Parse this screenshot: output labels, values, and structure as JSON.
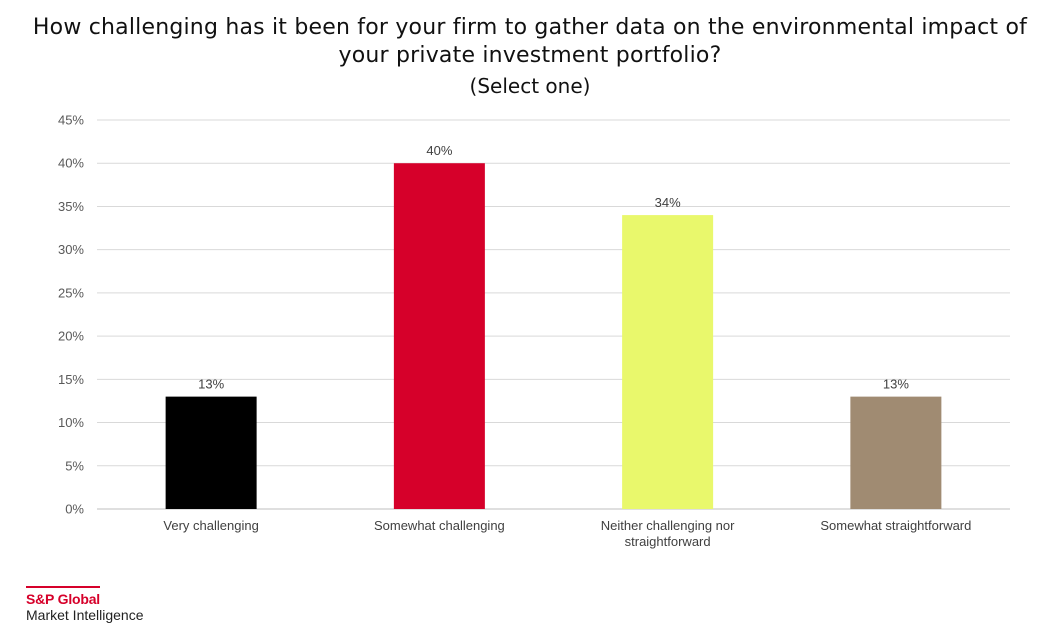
{
  "title_lines": [
    "How challenging has it been for your firm to gather data on the environmental impact of",
    "your private investment portfolio?"
  ],
  "subtitle": "(Select one)",
  "logo": {
    "brand": "S&P Global",
    "subtitle": "Market Intelligence",
    "color": "#d6002a"
  },
  "chart_data": {
    "type": "bar",
    "title": "How challenging has it been for your firm to gather data on the environmental impact of your private investment portfolio?",
    "subtitle": "(Select one)",
    "categories": [
      [
        "Very challenging"
      ],
      [
        "Somewhat challenging"
      ],
      [
        "Neither challenging nor",
        "straightforward"
      ],
      [
        "Somewhat straightforward"
      ]
    ],
    "values": [
      13,
      40,
      34,
      13
    ],
    "data_labels": [
      "13%",
      "40%",
      "34%",
      "13%"
    ],
    "colors": [
      "#000000",
      "#d6002a",
      "#e9f86c",
      "#a08b72"
    ],
    "ylim": [
      0,
      45
    ],
    "yticks": [
      "0%",
      "5%",
      "10%",
      "15%",
      "20%",
      "25%",
      "30%",
      "35%",
      "40%",
      "45%"
    ],
    "grid": true,
    "legend": false
  }
}
